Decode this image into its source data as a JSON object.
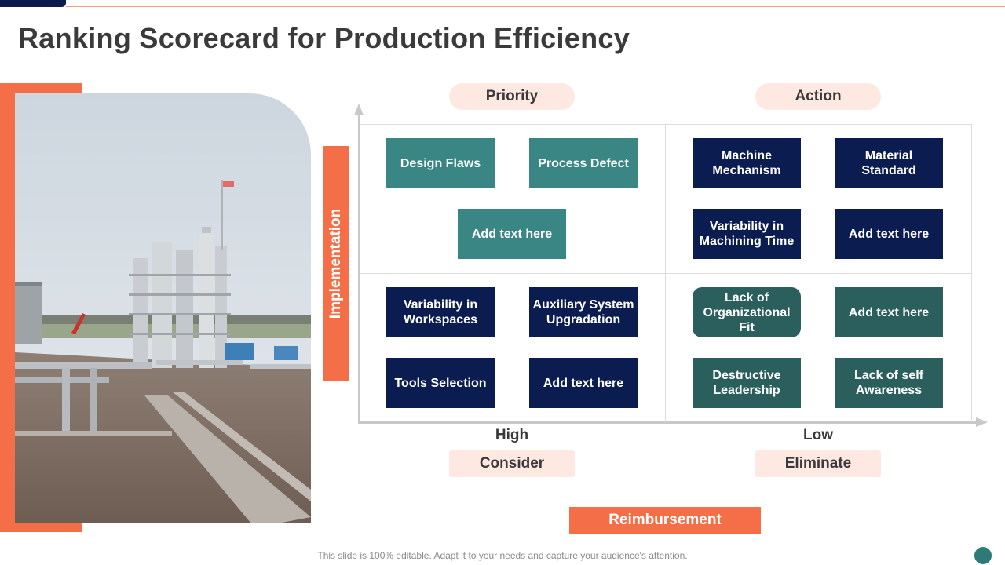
{
  "slide": {
    "title": "Ranking Scorecard for Production Efficiency",
    "footer": "This slide is 100% editable. Adapt it to your needs and capture your audience's attention."
  },
  "chart": {
    "y_axis_label": "Implementation",
    "x_axis_label": "Reimbursement",
    "x_high_label": "High",
    "x_low_label": "Low",
    "quadrant_labels": {
      "top_left": "Priority",
      "top_right": "Action",
      "bottom_left": "Consider",
      "bottom_right": "Eliminate"
    }
  },
  "quadrants": {
    "priority": [
      "Design Flaws",
      "Process Defect",
      "Add text here"
    ],
    "action": [
      "Machine Mechanism",
      "Material Standard",
      "Variability in Machining Time",
      "Add text here"
    ],
    "consider": [
      "Variability in Workspaces",
      "Auxiliary System Upgradation",
      "Tools Selection",
      "Add text here"
    ],
    "eliminate": [
      "Lack of Organizational Fit",
      "Add text here",
      "Destructive Leadership",
      "Lack of self Awareness"
    ]
  },
  "colors": {
    "accent": "#f46e47",
    "navy": "#0b1c50",
    "teal": "#3a8684",
    "dark_teal": "#2a5f5d",
    "pill_bg": "#fde9e2"
  },
  "icons": {
    "photo": "industrial-plant-photo"
  }
}
